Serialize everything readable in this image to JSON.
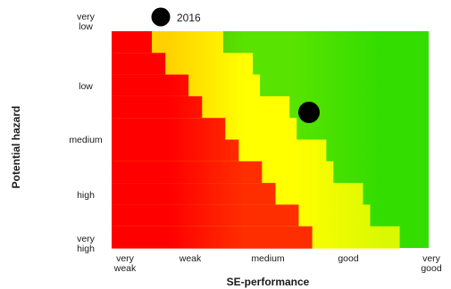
{
  "chart_data": {
    "type": "heatmap",
    "title": "",
    "xlabel": "SE-performance",
    "ylabel": "Potential hazard",
    "x_categories": [
      [
        "very",
        "weak"
      ],
      [
        "weak"
      ],
      [
        "medium"
      ],
      [
        "good"
      ],
      [
        "very",
        "good"
      ]
    ],
    "y_categories": [
      [
        "very",
        "low"
      ],
      [
        "low"
      ],
      [
        "medium"
      ],
      [
        "high"
      ],
      [
        "very",
        "high"
      ]
    ],
    "zones": [
      {
        "name": "red",
        "color": "#ff0000"
      },
      {
        "name": "yellow",
        "color": "#ffff00"
      },
      {
        "name": "green",
        "color": "#33dd00"
      }
    ],
    "series": [
      {
        "name": "2016",
        "points": [
          {
            "x": "good",
            "y": "low"
          }
        ]
      }
    ],
    "legend": {
      "label": "2016",
      "placement": "top"
    },
    "grid": false
  }
}
